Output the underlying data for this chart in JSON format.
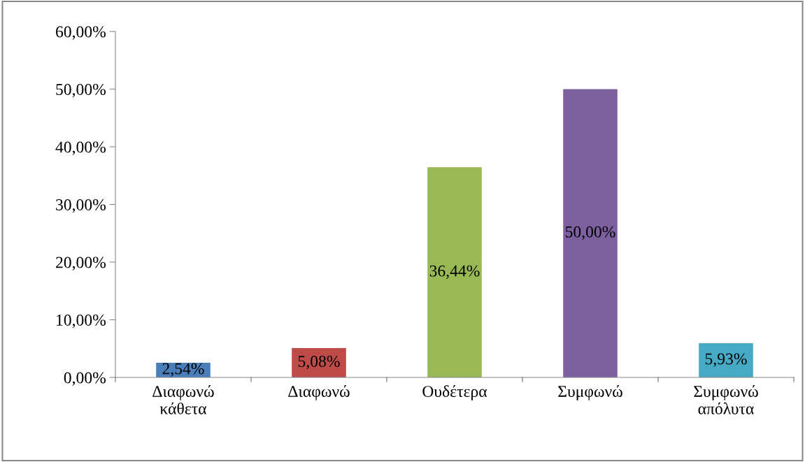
{
  "chart_data": {
    "type": "bar",
    "categories": [
      "Διαφωνώ\nκάθετα",
      "Διαφωνώ",
      "Ουδέτερα",
      "Συμφωνώ",
      "Συμφωνώ\nαπόλυτα"
    ],
    "values": [
      2.54,
      5.08,
      36.44,
      50.0,
      5.93
    ],
    "colors": [
      "#4a7ebb",
      "#be4b48",
      "#98b954",
      "#7d60a0",
      "#46aac5"
    ],
    "value_labels": [
      "2,54%",
      "5,08%",
      "36,44%",
      "50,00%",
      "5,93%"
    ],
    "ylim": [
      0,
      60
    ],
    "yticks": [
      {
        "value": 0,
        "label": "0,00%"
      },
      {
        "value": 10,
        "label": "10,00%"
      },
      {
        "value": 20,
        "label": "20,00%"
      },
      {
        "value": 30,
        "label": "30,00%"
      },
      {
        "value": 40,
        "label": "40,00%"
      },
      {
        "value": 50,
        "label": "50,00%"
      },
      {
        "value": 60,
        "label": "60,00%"
      }
    ],
    "grid": false,
    "legend": false
  }
}
